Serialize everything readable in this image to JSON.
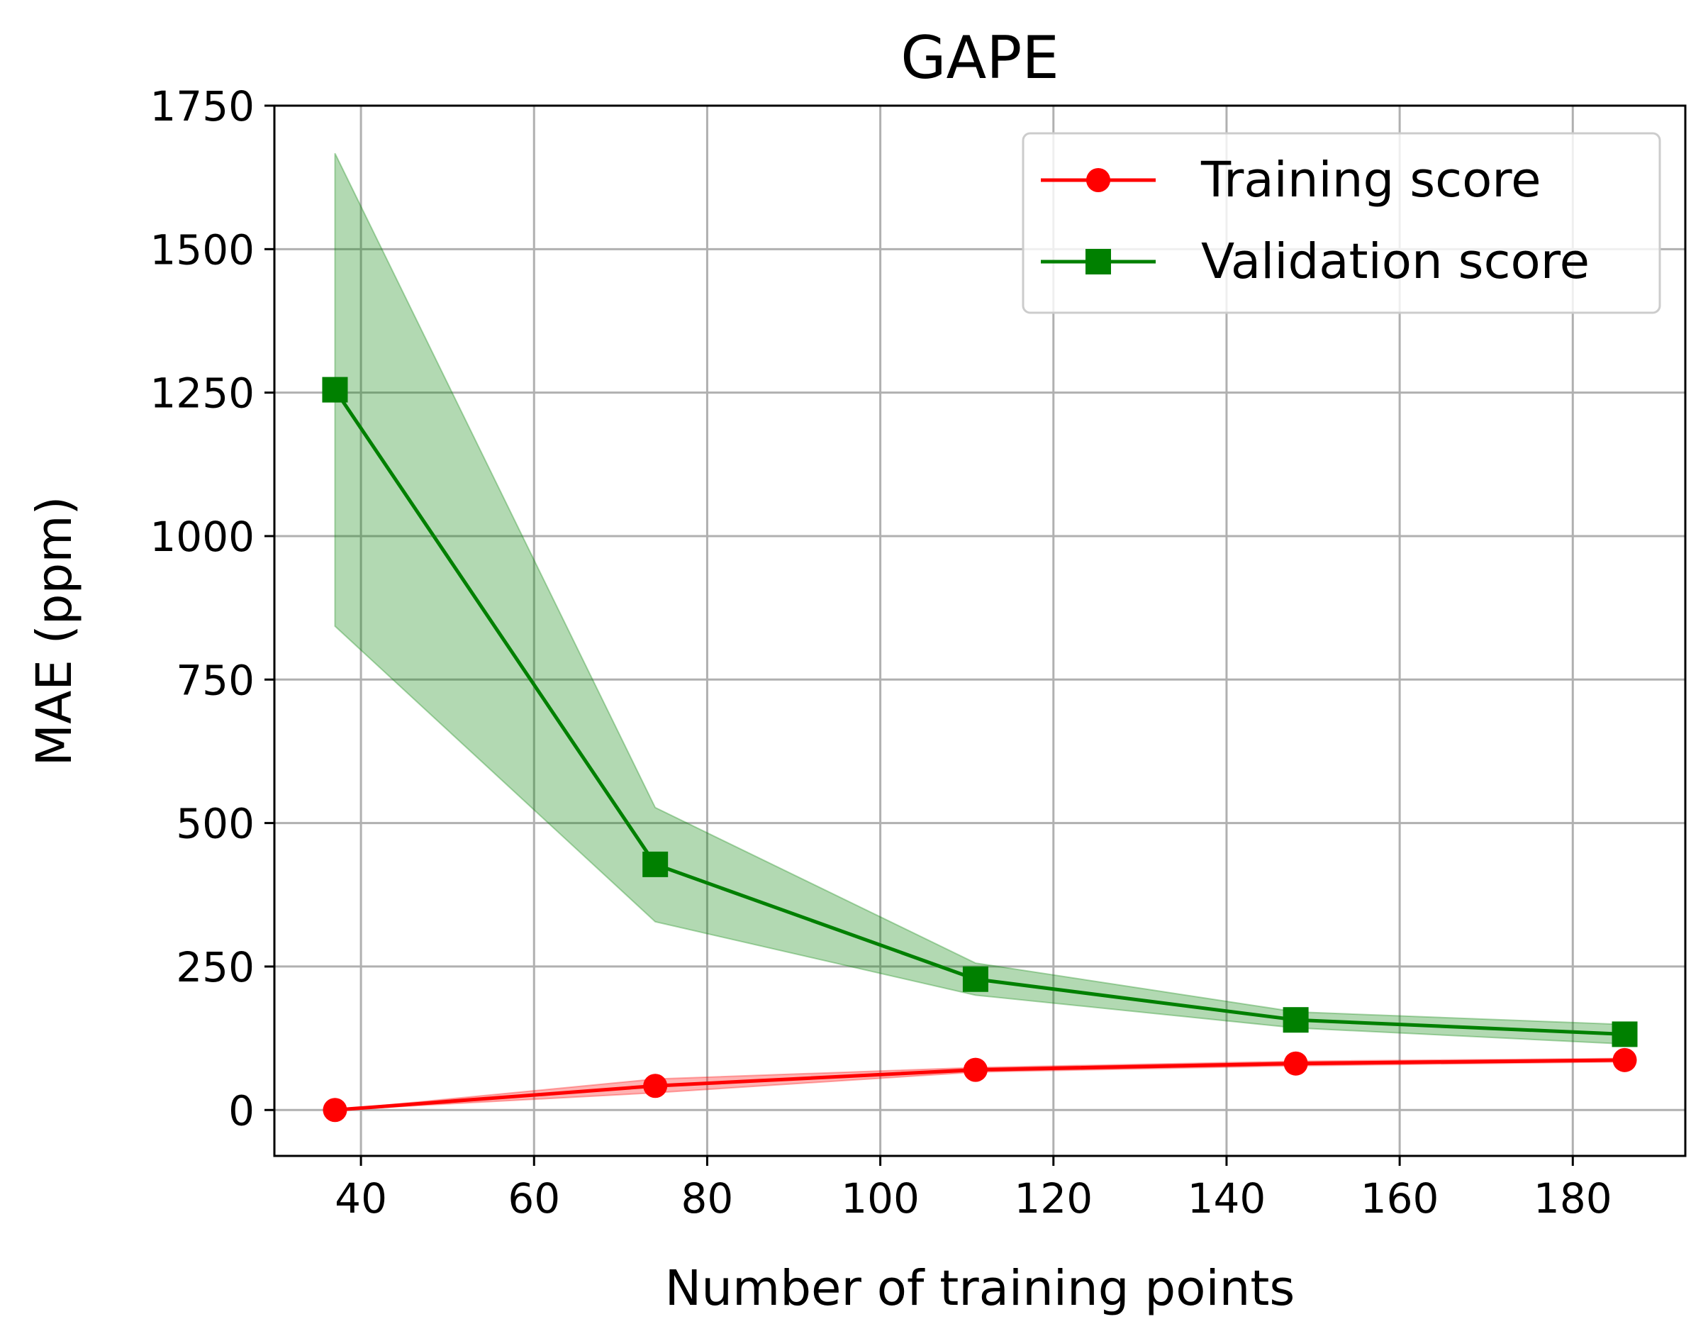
{
  "chart_data": {
    "type": "line",
    "title": "GAPE",
    "xlabel": "Number of training points",
    "ylabel": "MAE (ppm)",
    "xlim": [
      30,
      193
    ],
    "ylim": [
      -80,
      1750
    ],
    "xticks": [
      40,
      60,
      80,
      100,
      120,
      140,
      160,
      180
    ],
    "yticks": [
      0,
      250,
      500,
      750,
      1000,
      1250,
      1500,
      1750
    ],
    "grid": true,
    "legend_position": "upper right",
    "x": [
      37,
      74,
      111,
      148,
      186
    ],
    "series": [
      {
        "name": "Training score",
        "color": "#ff0000",
        "marker": "circle",
        "values": [
          0,
          42,
          70,
          81,
          87
        ],
        "band_lower": [
          0,
          30,
          66,
          77,
          84
        ],
        "band_upper": [
          0,
          54,
          74,
          85,
          90
        ]
      },
      {
        "name": "Validation score",
        "color": "#008000",
        "marker": "square",
        "values": [
          1255,
          428,
          228,
          157,
          132
        ],
        "band_lower": [
          843,
          328,
          200,
          143,
          115
        ],
        "band_upper": [
          1667,
          527,
          256,
          171,
          149
        ]
      }
    ]
  }
}
